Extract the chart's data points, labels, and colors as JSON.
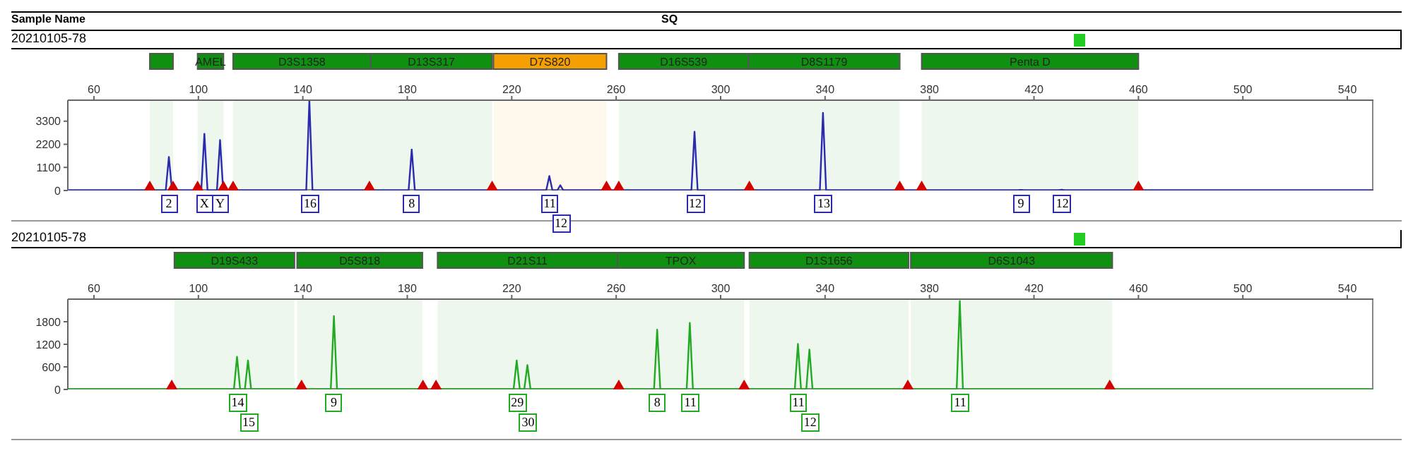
{
  "chart_data": [
    {
      "type": "line",
      "title": "20210105-78",
      "annotations": [
        "Sample Name",
        "SQ",
        {
          "text": "2",
          "x": 88.7,
          "y": 0
        },
        {
          "text": "X",
          "x": 102.3,
          "y": 0
        },
        {
          "text": "Y",
          "x": 108.3,
          "y": 0
        },
        {
          "text": "16",
          "x": 142.5,
          "y": 0
        },
        {
          "text": "8",
          "x": 181.7,
          "y": 0
        },
        {
          "text": "11",
          "x": 234.4,
          "y": 0
        },
        {
          "text": "12",
          "x": 238.6,
          "y": 0
        },
        {
          "text": "12",
          "x": 290,
          "y": 0
        },
        {
          "text": "13",
          "x": 339.2,
          "y": 0
        },
        {
          "text": "9",
          "x": 415,
          "y": 0
        },
        {
          "text": "12",
          "x": 430.6,
          "y": 0
        }
      ],
      "xlim": [
        50,
        550
      ],
      "xticks": [
        60,
        100,
        140,
        180,
        220,
        260,
        300,
        340,
        380,
        420,
        460,
        500,
        540
      ],
      "ylim": [
        0,
        4300
      ],
      "yticks": [
        0,
        1100,
        2200,
        3300
      ],
      "bands": [
        {
          "axis": "x",
          "from": 81.4,
          "to": 90.3,
          "color": "#109010"
        },
        {
          "axis": "x",
          "from": 99.7,
          "to": 109.6,
          "label": "AMEL",
          "color": "#109010"
        },
        {
          "axis": "x",
          "from": 113.3,
          "to": 166,
          "label": "D3S1358",
          "color": "#109010"
        },
        {
          "axis": "x",
          "from": 166,
          "to": 212.5,
          "label": "D13S317",
          "color": "#109010"
        },
        {
          "axis": "x",
          "from": 213,
          "to": 256.3,
          "label": "D7S820",
          "color": "#f5a000"
        },
        {
          "axis": "x",
          "from": 261,
          "to": 310.7,
          "label": "D16S539",
          "color": "#109010"
        },
        {
          "axis": "x",
          "from": 310.7,
          "to": 368.6,
          "label": "D8S1179",
          "color": "#109010"
        },
        {
          "axis": "x",
          "from": 377,
          "to": 460,
          "label": "Penta D",
          "color": "#109010"
        }
      ],
      "series": [
        {
          "color": "#2b2bb0",
          "marker": "none",
          "x": [
            50,
            80,
            87.5,
            88.7,
            89.9,
            101.1,
            102.3,
            103.5,
            107.1,
            108.3,
            109.5,
            141.3,
            142.5,
            143.7,
            180.5,
            181.7,
            182.9,
            233.2,
            234.4,
            235.6,
            237.4,
            238.6,
            239.8,
            288.8,
            290,
            291.2,
            338,
            339.2,
            340.4,
            413.8,
            415,
            416.2,
            429.4,
            430.6,
            431.8,
            550
          ],
          "values": [
            0,
            0,
            0,
            1600,
            0,
            0,
            2700,
            0,
            0,
            2400,
            0,
            0,
            4300,
            0,
            0,
            1950,
            0,
            0,
            690,
            0,
            0,
            250,
            0,
            0,
            2800,
            0,
            0,
            3700,
            0,
            0,
            30,
            0,
            0,
            40,
            0,
            0
          ]
        },
        {
          "type": "scatter",
          "color": "#d40000",
          "marker": "triangle",
          "x": [
            81.4,
            90.3,
            99.7,
            109.6,
            113.3,
            165.5,
            212.5,
            256.3,
            261,
            311,
            368.6,
            377,
            460
          ],
          "values": [
            0,
            0,
            0,
            0,
            0,
            0,
            0,
            0,
            0,
            0,
            0,
            0,
            0
          ]
        }
      ]
    },
    {
      "type": "line",
      "title": "20210105-78",
      "annotations": [
        {
          "text": "14",
          "x": 114.8,
          "y": 0
        },
        {
          "text": "15",
          "x": 119,
          "y": 0
        },
        {
          "text": "9",
          "x": 151.9,
          "y": 0
        },
        {
          "text": "29",
          "x": 221.9,
          "y": 0
        },
        {
          "text": "30",
          "x": 226,
          "y": 0
        },
        {
          "text": "8",
          "x": 275.7,
          "y": 0
        },
        {
          "text": "11",
          "x": 288.2,
          "y": 0
        },
        {
          "text": "11",
          "x": 329.6,
          "y": 0
        },
        {
          "text": "12",
          "x": 334,
          "y": 0
        },
        {
          "text": "11",
          "x": 391.6,
          "y": 0
        }
      ],
      "xlim": [
        50,
        550
      ],
      "xticks": [
        60,
        100,
        140,
        180,
        220,
        260,
        300,
        340,
        380,
        420,
        460,
        500,
        540
      ],
      "ylim": [
        0,
        2400
      ],
      "yticks": [
        0,
        600,
        1200,
        1800
      ],
      "bands": [
        {
          "axis": "x",
          "from": 90.8,
          "to": 136.8,
          "label": "D19S433",
          "color": "#109010"
        },
        {
          "axis": "x",
          "from": 137.8,
          "to": 185.8,
          "label": "D5S818",
          "color": "#109010"
        },
        {
          "axis": "x",
          "from": 191.6,
          "to": 260.5,
          "label": "D21S11",
          "color": "#109010"
        },
        {
          "axis": "x",
          "from": 260.5,
          "to": 309,
          "label": "TPOX",
          "color": "#109010"
        },
        {
          "axis": "x",
          "from": 311,
          "to": 372,
          "label": "D1S1656",
          "color": "#109010"
        },
        {
          "axis": "x",
          "from": 372.8,
          "to": 450,
          "label": "D6S1043",
          "color": "#109010"
        }
      ],
      "series": [
        {
          "color": "#22aa22",
          "marker": "none",
          "x": [
            50,
            113.6,
            114.8,
            116,
            117.8,
            119,
            120.2,
            150.7,
            151.9,
            153.1,
            220.7,
            221.9,
            223.1,
            224.8,
            226,
            227.2,
            274.5,
            275.7,
            276.9,
            287,
            288.2,
            289.4,
            328.4,
            329.6,
            330.8,
            332.8,
            334,
            335.2,
            390.4,
            391.6,
            392.8,
            550
          ],
          "values": [
            0,
            0,
            870,
            0,
            0,
            770,
            0,
            0,
            1950,
            0,
            0,
            770,
            0,
            0,
            650,
            0,
            0,
            1590,
            0,
            0,
            1770,
            0,
            0,
            1210,
            0,
            0,
            1060,
            0,
            0,
            2350,
            0,
            0
          ]
        },
        {
          "type": "scatter",
          "color": "#d40000",
          "marker": "triangle",
          "x": [
            89.8,
            139.5,
            186,
            191,
            261,
            309,
            371.7,
            449
          ],
          "values": [
            0,
            0,
            0,
            0,
            0,
            0,
            0,
            0
          ]
        }
      ]
    }
  ]
}
